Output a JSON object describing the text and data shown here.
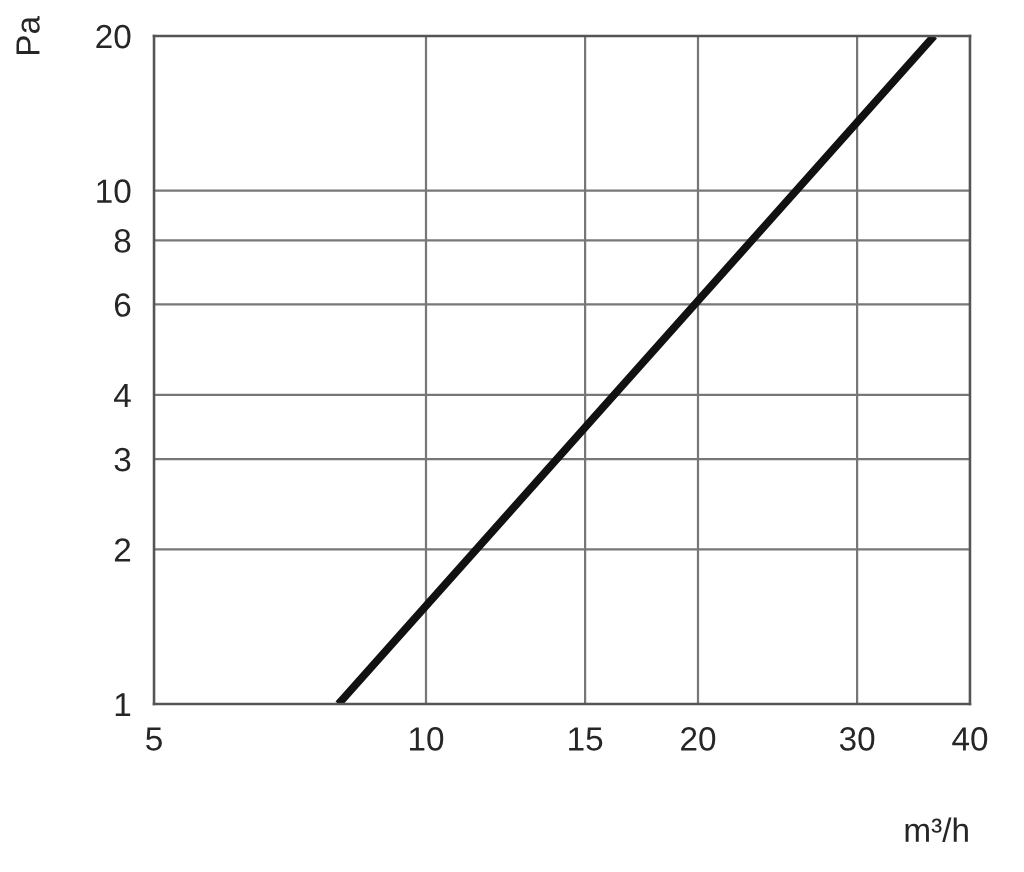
{
  "chart_data": {
    "type": "line",
    "xlabel": "m³/h",
    "ylabel": "Pa",
    "log": "xy",
    "series": [
      {
        "color": "#111111",
        "x": [
          8,
          20,
          36.5
        ],
        "values": [
          1,
          6.1,
          20
        ]
      }
    ],
    "xlim": [
      5,
      40
    ],
    "xticks": [
      5,
      10,
      15,
      20,
      30,
      40
    ],
    "ylim": [
      1,
      20
    ],
    "yticks": [
      1,
      2,
      3,
      4,
      6,
      8,
      10,
      20
    ],
    "grid": true,
    "marker": "none",
    "line_style": "solid",
    "legend": false
  }
}
